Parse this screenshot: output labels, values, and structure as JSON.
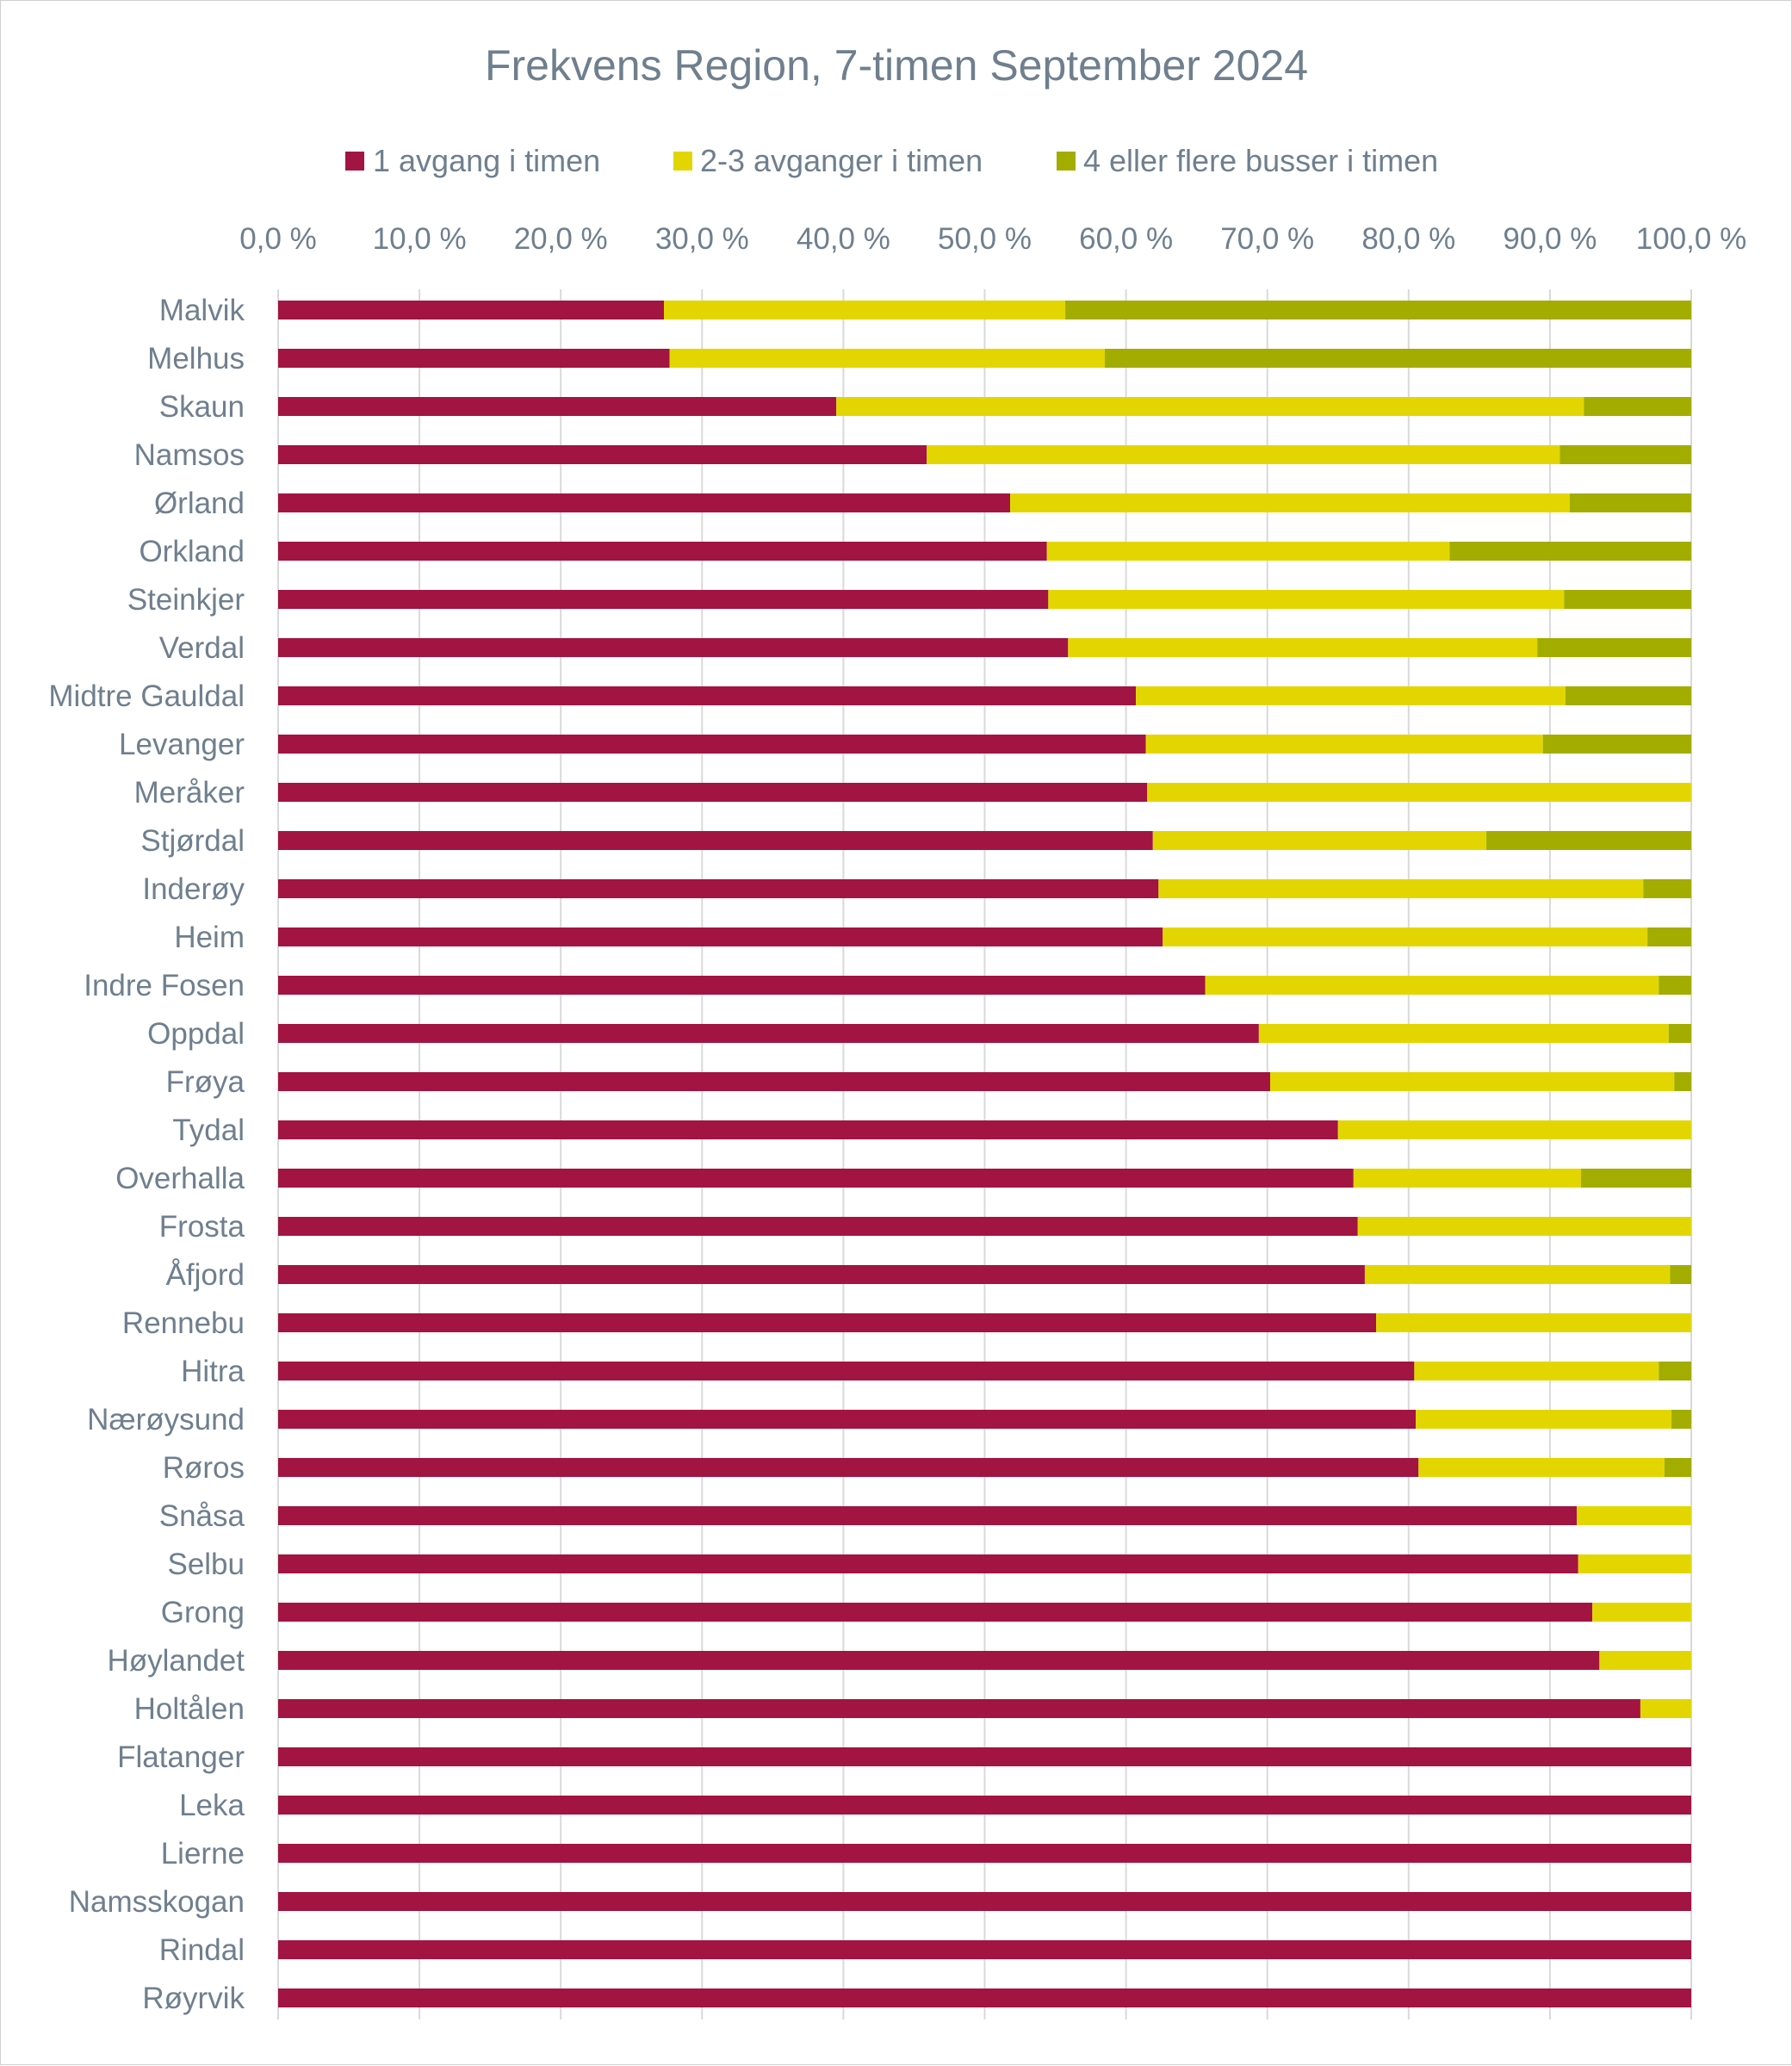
{
  "chart_data": {
    "type": "bar",
    "orientation": "horizontal",
    "stacked": true,
    "title": "Frekvens Region, 7-timen September 2024",
    "xlabel": "",
    "ylabel": "",
    "xlim": [
      0,
      100
    ],
    "x_ticks": [
      "0,0 %",
      "10,0 %",
      "20,0 %",
      "30,0 %",
      "40,0 %",
      "50,0 %",
      "60,0 %",
      "70,0 %",
      "80,0 %",
      "90,0 %",
      "100,0 %"
    ],
    "grid": "vertical",
    "legend_position": "top",
    "categories": [
      "Malvik",
      "Melhus",
      "Skaun",
      "Namsos",
      "Ørland",
      "Orkland",
      "Steinkjer",
      "Verdal",
      "Midtre Gauldal",
      "Levanger",
      "Meråker",
      "Stjørdal",
      "Inderøy",
      "Heim",
      "Indre Fosen",
      "Oppdal",
      "Frøya",
      "Tydal",
      "Overhalla",
      "Frosta",
      "Åfjord",
      "Rennebu",
      "Hitra",
      "Nærøysund",
      "Røros",
      "Snåsa",
      "Selbu",
      "Grong",
      "Høylandet",
      "Holtålen",
      "Flatanger",
      "Leka",
      "Lierne",
      "Namsskogan",
      "Rindal",
      "Røyrvik"
    ],
    "series": [
      {
        "name": "1 avgang i timen",
        "color": "#a21442",
        "values": [
          27.3,
          27.7,
          39.5,
          45.9,
          51.8,
          54.4,
          54.5,
          55.9,
          60.7,
          61.4,
          61.5,
          61.9,
          62.3,
          62.6,
          65.6,
          69.4,
          70.2,
          75.0,
          76.1,
          76.4,
          76.9,
          77.7,
          80.4,
          80.5,
          80.7,
          91.9,
          92.0,
          93.0,
          93.5,
          96.4,
          100,
          100,
          100,
          100,
          100,
          100
        ]
      },
      {
        "name": "2-3 avganger i timen",
        "color": "#e3d600",
        "values": [
          28.4,
          30.8,
          52.9,
          44.8,
          39.6,
          28.5,
          36.5,
          33.2,
          30.4,
          28.1,
          38.5,
          23.6,
          34.3,
          34.3,
          32.1,
          29.0,
          28.6,
          25.0,
          16.1,
          23.6,
          21.6,
          22.3,
          17.3,
          18.1,
          17.4,
          8.1,
          8.0,
          7.0,
          6.5,
          3.6,
          0,
          0,
          0,
          0,
          0,
          0
        ]
      },
      {
        "name": "4 eller flere busser i timen",
        "color": "#a2ad00",
        "values": [
          44.3,
          41.5,
          7.6,
          9.3,
          8.6,
          17.1,
          9.0,
          10.9,
          8.9,
          10.5,
          0,
          14.5,
          3.4,
          3.1,
          2.3,
          1.6,
          1.2,
          0,
          7.8,
          0,
          1.5,
          0,
          2.3,
          1.4,
          1.9,
          0,
          0,
          0,
          0,
          0,
          0,
          0,
          0,
          0,
          0,
          0
        ]
      }
    ]
  }
}
